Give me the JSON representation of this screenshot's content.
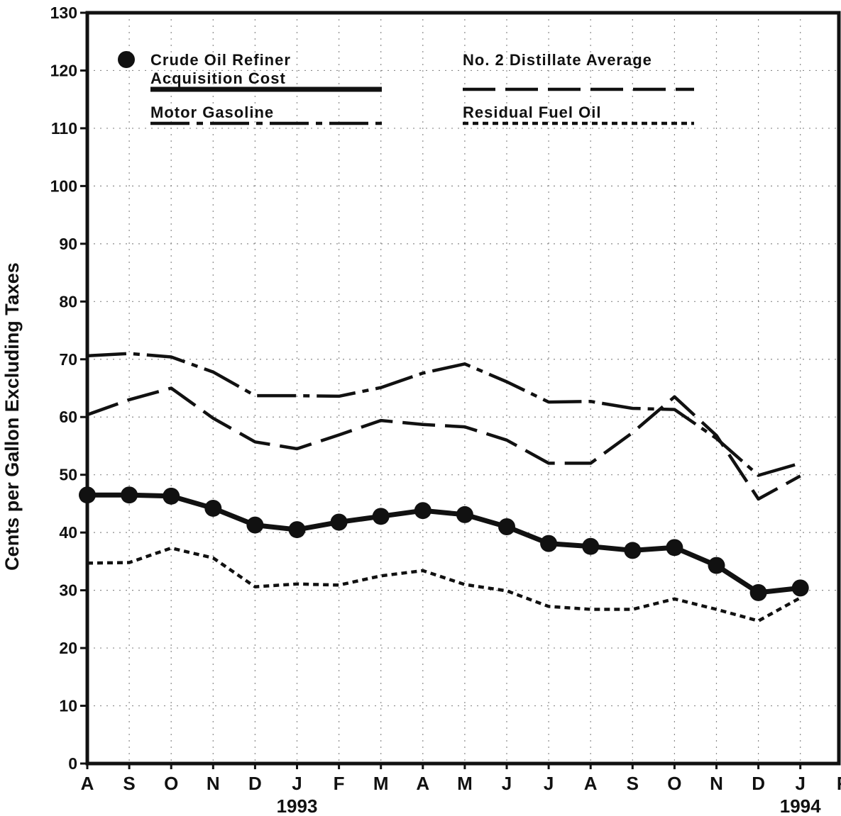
{
  "chart_data": {
    "type": "line",
    "title": "",
    "xlabel": "",
    "ylabel": "Cents per Gallon Excluding Taxes",
    "ylim": [
      0,
      130
    ],
    "y_ticks": [
      0,
      10,
      20,
      30,
      40,
      50,
      60,
      70,
      80,
      90,
      100,
      110,
      120,
      130
    ],
    "grid": "dotted",
    "legend_position": "top",
    "categories": [
      "A",
      "S",
      "O",
      "N",
      "D",
      "J",
      "F",
      "M",
      "A",
      "M",
      "J",
      "J",
      "A",
      "S",
      "O",
      "N",
      "D",
      "J",
      "F"
    ],
    "year_labels": [
      {
        "text": "1993",
        "category_index": 5
      },
      {
        "text": "1994",
        "category_index": 17
      }
    ],
    "series": [
      {
        "name": "Crude Oil Refiner Acquisition Cost",
        "legend_lines": [
          "Crude Oil Refiner",
          "Acquisition Cost"
        ],
        "style": "solid-markers",
        "values": [
          46.5,
          46.5,
          46.3,
          44.2,
          41.3,
          40.5,
          41.8,
          42.8,
          43.8,
          43.1,
          41.0,
          38.1,
          37.6,
          36.9,
          37.4,
          34.3,
          29.6,
          30.4,
          null
        ]
      },
      {
        "name": "No. 2 Distillate Average",
        "legend_lines": [
          "No. 2 Distillate Average"
        ],
        "style": "long-dash",
        "values": [
          60.4,
          63.0,
          65.0,
          59.8,
          55.7,
          54.5,
          56.9,
          59.4,
          58.7,
          58.3,
          56.0,
          52.0,
          52.0,
          57.3,
          63.5,
          56.8,
          45.8,
          49.8,
          null
        ]
      },
      {
        "name": "Motor Gasoline",
        "legend_lines": [
          "Motor Gasoline"
        ],
        "style": "dash-dot",
        "values": [
          70.6,
          71.0,
          70.4,
          67.8,
          63.7,
          63.7,
          63.6,
          65.1,
          67.6,
          69.2,
          66.1,
          62.6,
          62.7,
          61.5,
          61.3,
          56.3,
          49.9,
          52.0,
          null
        ]
      },
      {
        "name": "Residual Fuel Oil",
        "legend_lines": [
          "Residual Fuel Oil"
        ],
        "style": "dotted",
        "values": [
          34.7,
          34.8,
          37.3,
          35.6,
          30.6,
          31.1,
          30.9,
          32.5,
          33.4,
          31.0,
          29.9,
          27.2,
          26.7,
          26.7,
          28.5,
          26.7,
          24.7,
          28.7,
          null
        ]
      }
    ]
  }
}
